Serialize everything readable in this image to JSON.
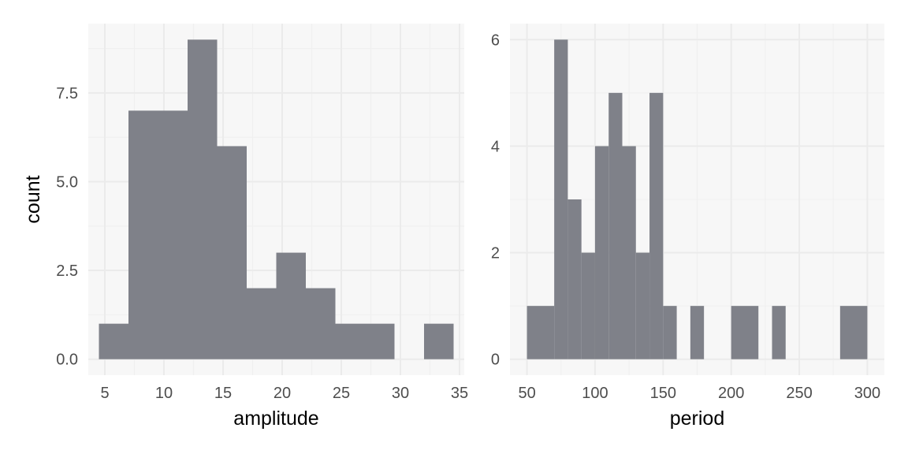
{
  "chart_data": [
    {
      "type": "bar",
      "subtype": "histogram",
      "xlabel": "amplitude",
      "ylabel": "count",
      "xlim": [
        3.6,
        35.4
      ],
      "ylim": [
        -0.45,
        9.45
      ],
      "xticks": [
        5,
        10,
        15,
        20,
        25,
        30,
        35
      ],
      "xtick_labels": [
        "5",
        "10",
        "15",
        "20",
        "25",
        "30",
        "35"
      ],
      "yticks": [
        0,
        2.5,
        5,
        7.5
      ],
      "ytick_labels": [
        "0.0",
        "2.5",
        "5.0",
        "7.5"
      ],
      "xminor": [
        7.5,
        12.5,
        17.5,
        22.5,
        27.5,
        32.5
      ],
      "yminor": [
        1.25,
        3.75,
        6.25,
        8.75
      ],
      "bins": [
        {
          "x0": 4.5,
          "x1": 7.0,
          "count": 1
        },
        {
          "x0": 7.0,
          "x1": 9.5,
          "count": 7
        },
        {
          "x0": 9.5,
          "x1": 12.0,
          "count": 7
        },
        {
          "x0": 12.0,
          "x1": 14.5,
          "count": 9
        },
        {
          "x0": 14.5,
          "x1": 17.0,
          "count": 6
        },
        {
          "x0": 17.0,
          "x1": 19.5,
          "count": 2
        },
        {
          "x0": 19.5,
          "x1": 22.0,
          "count": 3
        },
        {
          "x0": 22.0,
          "x1": 24.5,
          "count": 2
        },
        {
          "x0": 24.5,
          "x1": 27.0,
          "count": 1
        },
        {
          "x0": 27.0,
          "x1": 29.5,
          "count": 1
        },
        {
          "x0": 29.5,
          "x1": 32.0,
          "count": 0
        },
        {
          "x0": 32.0,
          "x1": 34.5,
          "count": 1
        }
      ],
      "bar_color": "#7f8189",
      "grid": true
    },
    {
      "type": "bar",
      "subtype": "histogram",
      "xlabel": "period",
      "ylabel": "",
      "xlim": [
        37.5,
        312.5
      ],
      "ylim": [
        -0.3,
        6.3
      ],
      "xticks": [
        50,
        100,
        150,
        200,
        250,
        300
      ],
      "xtick_labels": [
        "50",
        "100",
        "150",
        "200",
        "250",
        "300"
      ],
      "yticks": [
        0,
        2,
        4,
        6
      ],
      "ytick_labels": [
        "0",
        "2",
        "4",
        "6"
      ],
      "xminor": [
        75,
        125,
        175,
        225,
        275
      ],
      "yminor": [
        1,
        3,
        5
      ],
      "bins": [
        {
          "x0": 50,
          "x1": 70,
          "count": 1
        },
        {
          "x0": 70,
          "x1": 80,
          "count": 6
        },
        {
          "x0": 80,
          "x1": 90,
          "count": 3
        },
        {
          "x0": 90,
          "x1": 100,
          "count": 2
        },
        {
          "x0": 100,
          "x1": 110,
          "count": 4
        },
        {
          "x0": 110,
          "x1": 120,
          "count": 5
        },
        {
          "x0": 120,
          "x1": 130,
          "count": 4
        },
        {
          "x0": 130,
          "x1": 140,
          "count": 2
        },
        {
          "x0": 140,
          "x1": 150,
          "count": 5
        },
        {
          "x0": 150,
          "x1": 160,
          "count": 1
        },
        {
          "x0": 170,
          "x1": 180,
          "count": 1
        },
        {
          "x0": 200,
          "x1": 220,
          "count": 1
        },
        {
          "x0": 230,
          "x1": 240,
          "count": 1
        },
        {
          "x0": 280,
          "x1": 300,
          "count": 1
        }
      ],
      "bar_color": "#7f8189",
      "grid": true
    }
  ]
}
